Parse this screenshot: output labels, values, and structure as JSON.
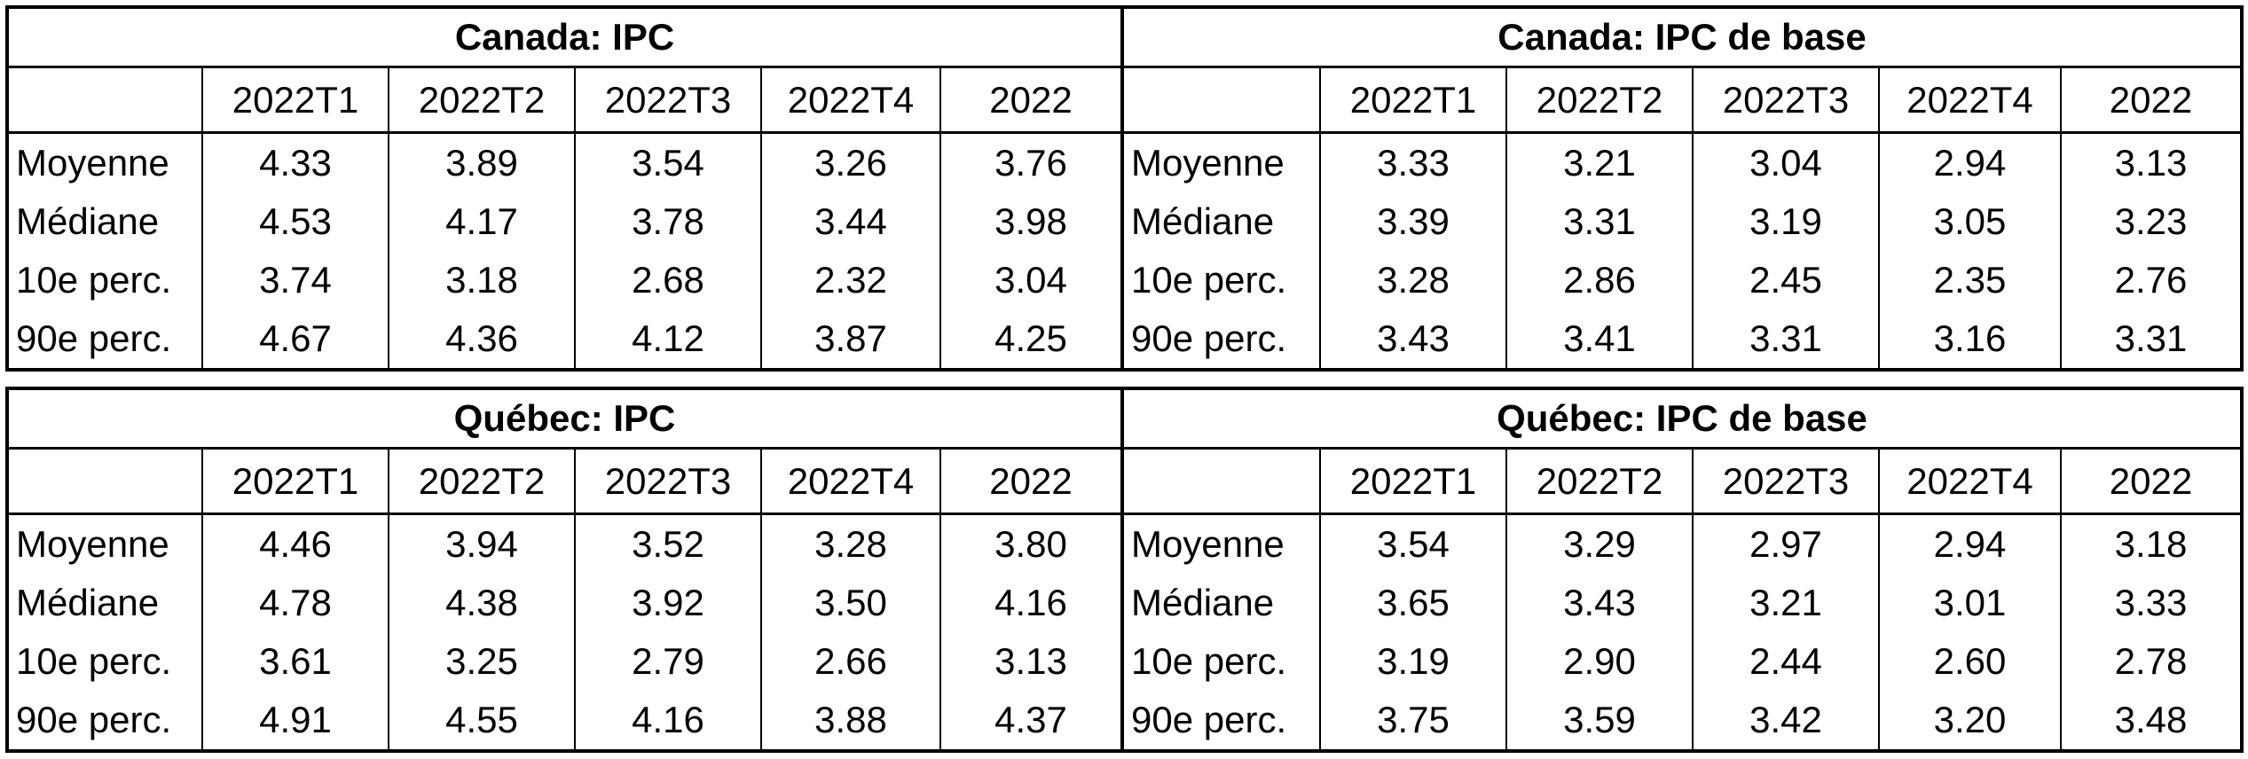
{
  "tables": [
    {
      "title": "Canada: IPC",
      "columns": [
        "2022T1",
        "2022T2",
        "2022T3",
        "2022T4",
        "2022"
      ],
      "rows": [
        {
          "label": "Moyenne",
          "values": [
            "4.33",
            "3.89",
            "3.54",
            "3.26",
            "3.76"
          ]
        },
        {
          "label": "Médiane",
          "values": [
            "4.53",
            "4.17",
            "3.78",
            "3.44",
            "3.98"
          ]
        },
        {
          "label": "10e perc.",
          "values": [
            "3.74",
            "3.18",
            "2.68",
            "2.32",
            "3.04"
          ]
        },
        {
          "label": "90e perc.",
          "values": [
            "4.67",
            "4.36",
            "4.12",
            "3.87",
            "4.25"
          ]
        }
      ]
    },
    {
      "title": "Canada: IPC de base",
      "columns": [
        "2022T1",
        "2022T2",
        "2022T3",
        "2022T4",
        "2022"
      ],
      "rows": [
        {
          "label": "Moyenne",
          "values": [
            "3.33",
            "3.21",
            "3.04",
            "2.94",
            "3.13"
          ]
        },
        {
          "label": "Médiane",
          "values": [
            "3.39",
            "3.31",
            "3.19",
            "3.05",
            "3.23"
          ]
        },
        {
          "label": "10e perc.",
          "values": [
            "3.28",
            "2.86",
            "2.45",
            "2.35",
            "2.76"
          ]
        },
        {
          "label": "90e perc.",
          "values": [
            "3.43",
            "3.41",
            "3.31",
            "3.16",
            "3.31"
          ]
        }
      ]
    },
    {
      "title": "Québec: IPC",
      "columns": [
        "2022T1",
        "2022T2",
        "2022T3",
        "2022T4",
        "2022"
      ],
      "rows": [
        {
          "label": "Moyenne",
          "values": [
            "4.46",
            "3.94",
            "3.52",
            "3.28",
            "3.80"
          ]
        },
        {
          "label": "Médiane",
          "values": [
            "4.78",
            "4.38",
            "3.92",
            "3.50",
            "4.16"
          ]
        },
        {
          "label": "10e perc.",
          "values": [
            "3.61",
            "3.25",
            "2.79",
            "2.66",
            "3.13"
          ]
        },
        {
          "label": "90e perc.",
          "values": [
            "4.91",
            "4.55",
            "4.16",
            "3.88",
            "4.37"
          ]
        }
      ]
    },
    {
      "title": "Québec: IPC de base",
      "columns": [
        "2022T1",
        "2022T2",
        "2022T3",
        "2022T4",
        "2022"
      ],
      "rows": [
        {
          "label": "Moyenne",
          "values": [
            "3.54",
            "3.29",
            "2.97",
            "2.94",
            "3.18"
          ]
        },
        {
          "label": "Médiane",
          "values": [
            "3.65",
            "3.43",
            "3.21",
            "3.01",
            "3.33"
          ]
        },
        {
          "label": "10e perc.",
          "values": [
            "3.19",
            "2.90",
            "2.44",
            "2.60",
            "2.78"
          ]
        },
        {
          "label": "90e perc.",
          "values": [
            "3.75",
            "3.59",
            "3.42",
            "3.20",
            "3.48"
          ]
        }
      ]
    }
  ]
}
